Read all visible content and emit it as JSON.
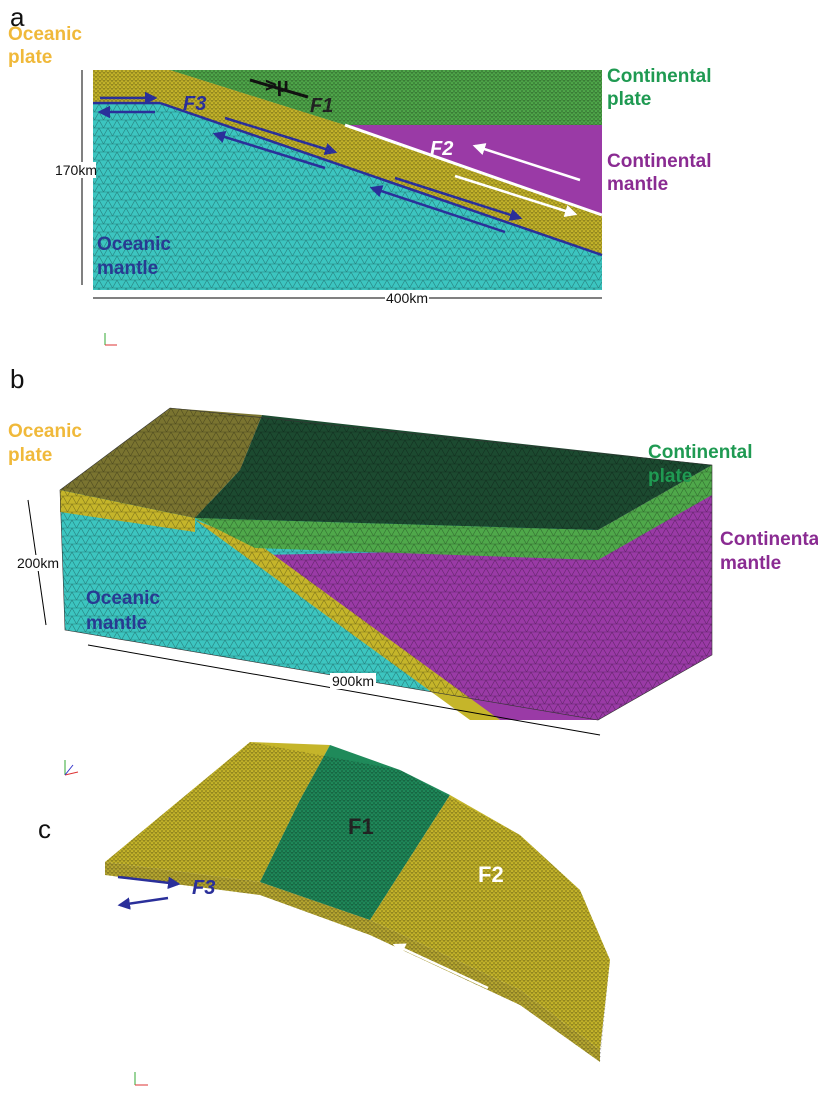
{
  "panel_a": {
    "label": "a",
    "oceanic_plate": [
      "Oceanic",
      "plate"
    ],
    "continental_plate": [
      "Continental",
      "plate"
    ],
    "continental_mantle": [
      "Continental",
      "mantle"
    ],
    "oceanic_mantle": [
      "Oceanic",
      "mantle"
    ],
    "height": "170km",
    "width": "400km",
    "friction": ">μ",
    "faults": [
      "F1",
      "F2",
      "F3"
    ]
  },
  "panel_b": {
    "label": "b",
    "oceanic_plate": [
      "Oceanic",
      "plate"
    ],
    "continental_plate": [
      "Continental",
      "plate"
    ],
    "continental_mantle": [
      "Continental",
      "mantle"
    ],
    "oceanic_mantle": [
      "Oceanic",
      "mantle"
    ],
    "height": "200km",
    "width": "900km"
  },
  "panel_c": {
    "label": "c",
    "faults": [
      "F1",
      "F2",
      "F3"
    ]
  }
}
